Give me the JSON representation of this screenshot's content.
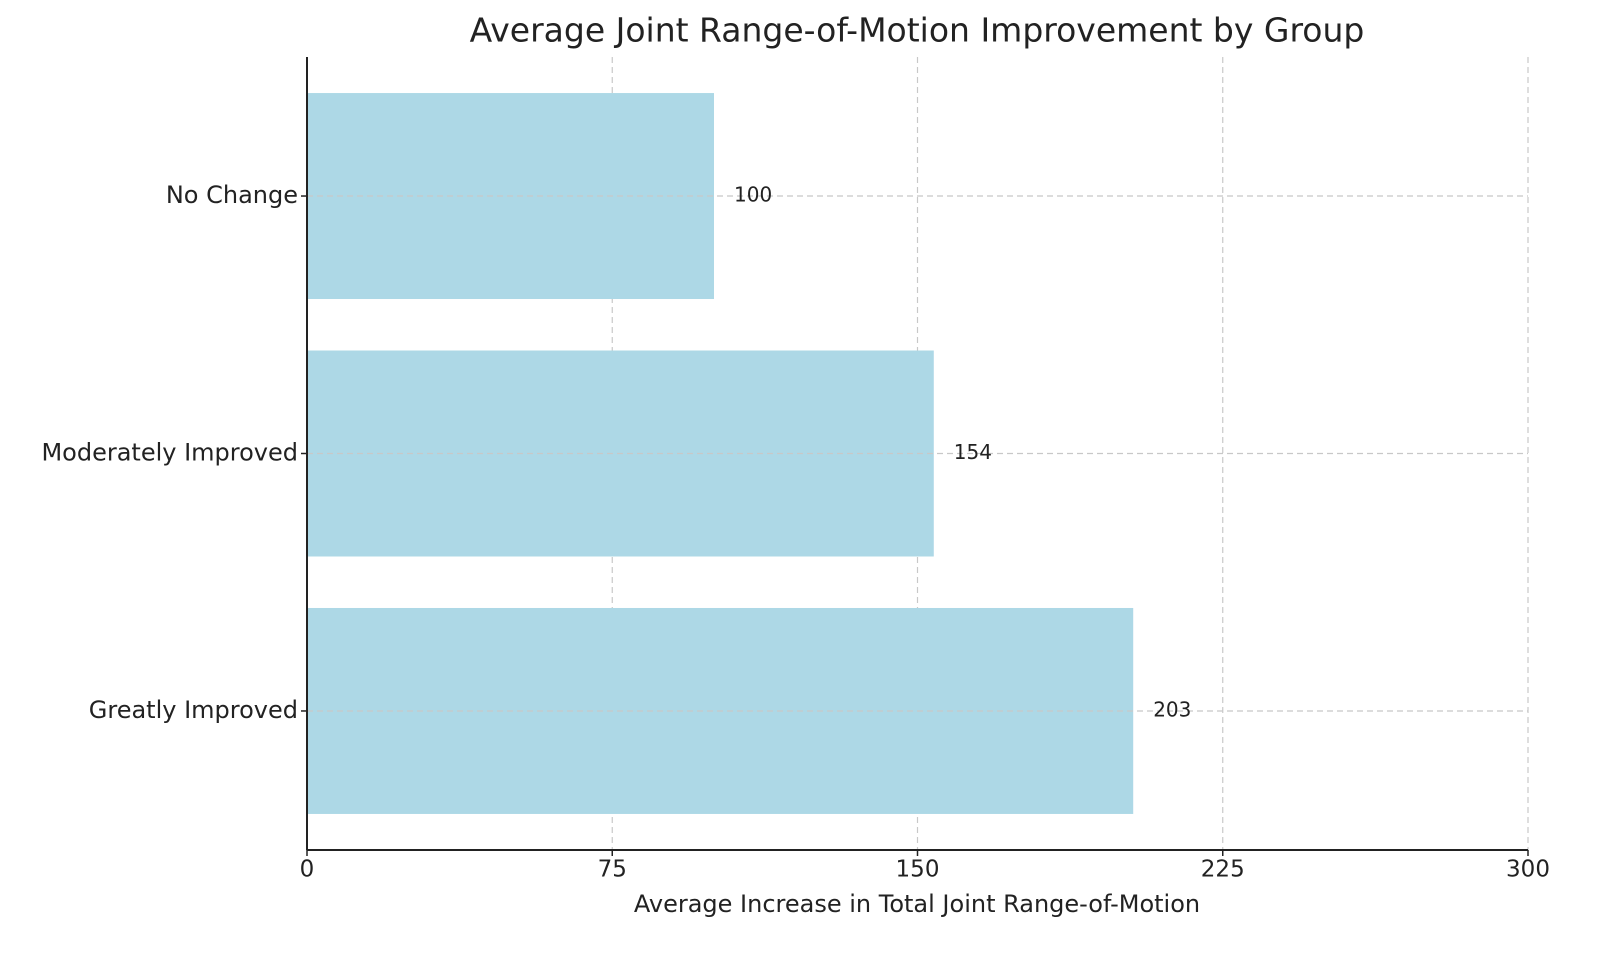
{
  "chart_data": {
    "type": "barh",
    "title": "Average Joint Range-of-Motion Improvement by Group",
    "x_label": "Average Increase in Total Joint Range-of-Motion",
    "categories": [
      "Greatly Improved",
      "Moderately Improved",
      "No Change"
    ],
    "values": [
      203,
      154,
      100
    ],
    "color": "#add8e6",
    "xlim": [
      0,
      300
    ],
    "xticks": [
      0,
      75,
      150,
      225,
      300
    ],
    "grid": true
  }
}
